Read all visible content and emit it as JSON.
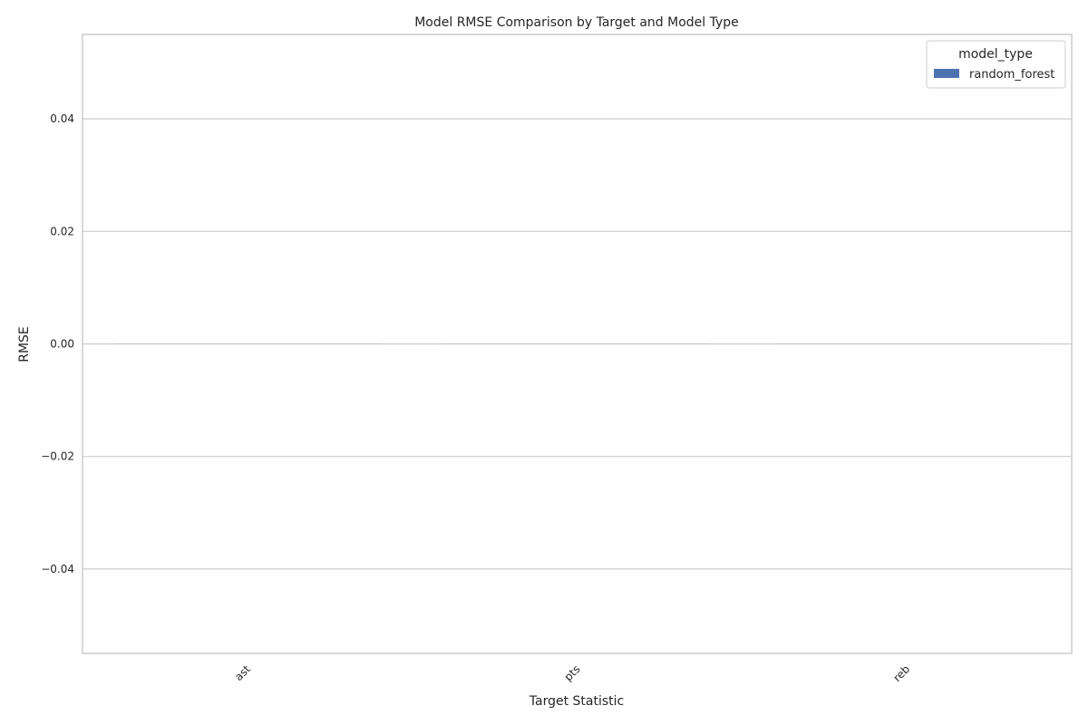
{
  "chart_data": {
    "type": "bar",
    "title": "Model RMSE Comparison by Target and Model Type",
    "xlabel": "Target Statistic",
    "ylabel": "RMSE",
    "categories": [
      "ast",
      "pts",
      "reb"
    ],
    "series": [
      {
        "name": "random_forest",
        "values": [
          0,
          0,
          0
        ],
        "color": "#4c72b0"
      }
    ],
    "ylim": [
      -0.055,
      0.055
    ],
    "yticks": [
      0.04,
      0.02,
      0.0,
      -0.02,
      -0.04
    ],
    "ytick_labels": [
      "0.04",
      "0.02",
      "0.00",
      "−0.02",
      "−0.04"
    ],
    "grid": true,
    "legend": {
      "title": "model_type",
      "placement": "top-right"
    }
  }
}
